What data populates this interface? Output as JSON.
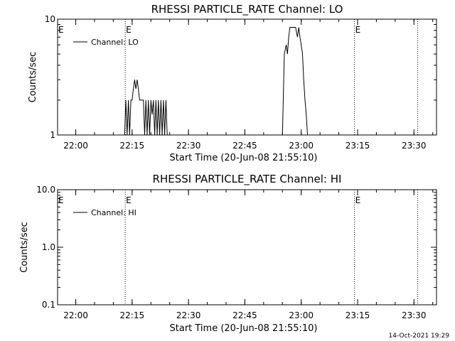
{
  "chart_data": [
    {
      "type": "line",
      "title": "RHESSI  PARTICLE_RATE  Channel:  LO",
      "xlabel": "Start Time (20-Jun-08 21:55:10)",
      "ylabel": "Counts/sec",
      "yscale": "log",
      "xlim": [
        "21:55:10",
        "23:36:00"
      ],
      "ylim": [
        1,
        10
      ],
      "x_ticks": [
        "22:00",
        "22:15",
        "22:30",
        "22:45",
        "23:00",
        "23:15",
        "23:30"
      ],
      "y_ticks": [
        "1",
        "10"
      ],
      "legend": "Channel: LO",
      "legend_position": "top-left",
      "event_markers": [
        {
          "time": "22:13:10",
          "label": "E"
        },
        {
          "time": "23:14:10",
          "label": "E"
        },
        {
          "time": "23:31:00",
          "label": ""
        }
      ],
      "series": [
        {
          "name": "Channel: LO",
          "x": [
            "22:13:00",
            "22:13:20",
            "22:13:40",
            "22:14:00",
            "22:14:20",
            "22:14:40",
            "22:15:00",
            "22:15:20",
            "22:15:40",
            "22:16:00",
            "22:16:20",
            "22:16:40",
            "22:17:00",
            "22:17:20",
            "22:17:40",
            "22:18:00",
            "22:18:20",
            "22:18:40",
            "22:19:00",
            "22:19:20",
            "22:19:40",
            "22:20:00",
            "22:20:20",
            "22:20:40",
            "22:21:00",
            "22:21:20",
            "22:21:40",
            "22:22:00",
            "22:22:20",
            "22:22:40",
            "22:23:00",
            "22:23:20",
            "22:23:40",
            "22:24:00",
            "22:24:20",
            "22:55:00",
            "22:55:30",
            "22:56:00",
            "22:56:20",
            "22:56:40",
            "22:57:00",
            "22:57:30",
            "22:58:00",
            "22:58:30",
            "22:59:00",
            "22:59:20",
            "22:59:40",
            "23:00:00",
            "23:00:20",
            "23:00:40",
            "23:01:00",
            "23:01:20",
            "23:01:40",
            "23:02:00"
          ],
          "y": [
            1,
            2,
            1,
            2,
            1,
            2,
            2,
            2.5,
            3,
            2.5,
            3,
            2.5,
            2,
            2,
            2,
            2,
            1,
            2,
            1,
            2,
            1,
            2,
            1.5,
            2,
            1,
            2,
            1,
            2,
            1,
            2,
            1,
            2,
            1,
            2,
            1,
            1,
            5,
            6,
            5,
            7,
            8.5,
            8.5,
            8.5,
            8.5,
            7,
            8.5,
            7,
            6,
            5,
            3,
            2,
            1.5,
            1,
            1
          ]
        }
      ]
    },
    {
      "type": "line",
      "title": "RHESSI  PARTICLE_RATE  Channel:  HI",
      "xlabel": "Start Time (20-Jun-08 21:55:10)",
      "ylabel": "Counts/sec",
      "yscale": "log",
      "xlim": [
        "21:55:10",
        "23:36:00"
      ],
      "ylim": [
        0.1,
        10
      ],
      "x_ticks": [
        "22:00",
        "22:15",
        "22:30",
        "22:45",
        "23:00",
        "23:15",
        "23:30"
      ],
      "y_ticks": [
        "0.1",
        "1.0",
        "10.0"
      ],
      "legend": "Channel: HI",
      "legend_position": "top-left",
      "event_markers": [
        {
          "time": "22:13:10",
          "label": "E"
        },
        {
          "time": "23:14:10",
          "label": "E"
        },
        {
          "time": "23:31:00",
          "label": ""
        }
      ],
      "series": [
        {
          "name": "Channel: HI",
          "x": [],
          "y": []
        }
      ]
    }
  ],
  "footer": {
    "timestamp": "14-Oct-2021 19:29"
  }
}
